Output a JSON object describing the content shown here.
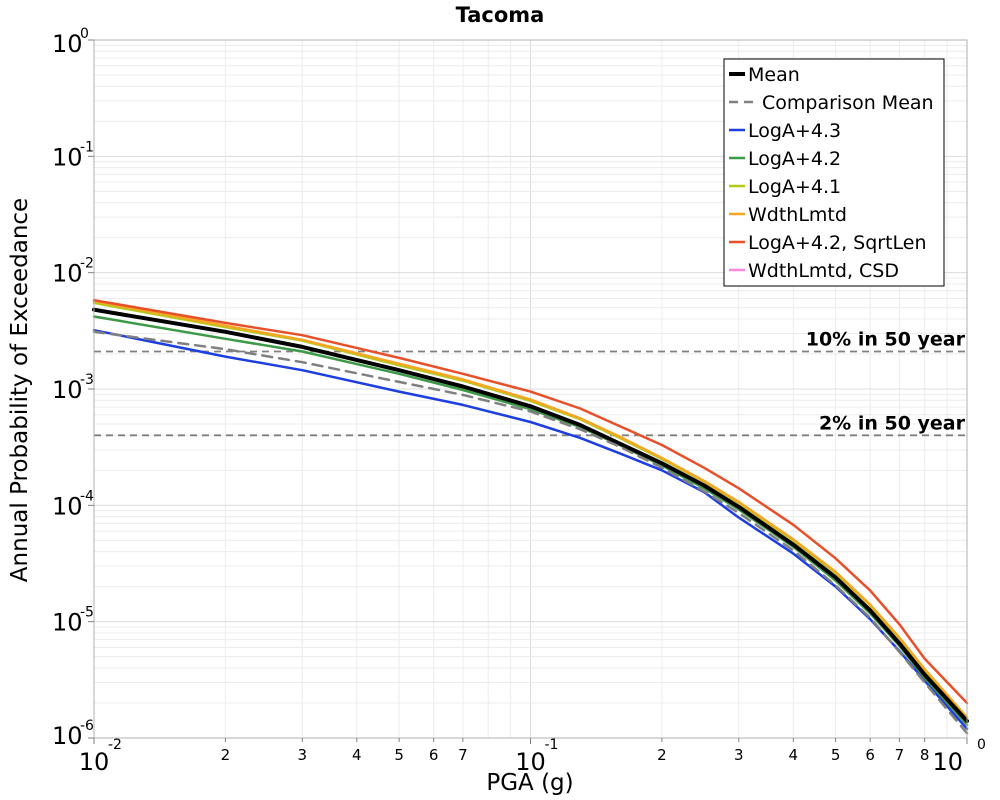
{
  "chart_data": {
    "type": "line",
    "title": "Tacoma",
    "xlabel": "PGA (g)",
    "ylabel": "Annual Probability of Exceedance",
    "xscale": "log",
    "yscale": "log",
    "xlim": [
      0.01,
      1.0
    ],
    "ylim": [
      1e-06,
      1.0
    ],
    "grid": true,
    "legend_position": "top-right",
    "x_major_ticks": [
      {
        "value": 0.01,
        "base": "10",
        "exp": "-2"
      },
      {
        "value": 0.1,
        "base": "10",
        "exp": "-1"
      },
      {
        "value": 1.0,
        "base": "10",
        "exp": "0"
      }
    ],
    "x_minor_ticks": [
      {
        "value": 0.02,
        "label": "2"
      },
      {
        "value": 0.03,
        "label": "3"
      },
      {
        "value": 0.04,
        "label": "4"
      },
      {
        "value": 0.05,
        "label": "5"
      },
      {
        "value": 0.06,
        "label": "6"
      },
      {
        "value": 0.07,
        "label": "7"
      },
      {
        "value": 0.2,
        "label": "2"
      },
      {
        "value": 0.3,
        "label": "3"
      },
      {
        "value": 0.4,
        "label": "4"
      },
      {
        "value": 0.5,
        "label": "5"
      },
      {
        "value": 0.6,
        "label": "6"
      },
      {
        "value": 0.7,
        "label": "7"
      },
      {
        "value": 0.8,
        "label": "8"
      }
    ],
    "y_major_ticks": [
      {
        "value": 1.0,
        "base": "10",
        "exp": "0"
      },
      {
        "value": 0.1,
        "base": "10",
        "exp": "-1"
      },
      {
        "value": 0.01,
        "base": "10",
        "exp": "-2"
      },
      {
        "value": 0.001,
        "base": "10",
        "exp": "-3"
      },
      {
        "value": 0.0001,
        "base": "10",
        "exp": "-4"
      },
      {
        "value": 1e-05,
        "base": "10",
        "exp": "-5"
      },
      {
        "value": 1e-06,
        "base": "10",
        "exp": "-6"
      }
    ],
    "x": [
      0.01,
      0.02,
      0.03,
      0.05,
      0.07,
      0.1,
      0.13,
      0.16,
      0.2,
      0.25,
      0.3,
      0.4,
      0.5,
      0.6,
      0.7,
      0.8,
      1.0
    ],
    "series": [
      {
        "name": "Mean",
        "color": "#000000",
        "style": "solid",
        "width": 4,
        "values": [
          0.0048,
          0.0031,
          0.0023,
          0.00145,
          0.00105,
          0.00071,
          0.00049,
          0.00034,
          0.00023,
          0.000148,
          9.7e-05,
          4.6e-05,
          2.4e-05,
          1.25e-05,
          6.5e-06,
          3.5e-06,
          1.4e-06
        ]
      },
      {
        "name": "Comparison Mean",
        "color": "#808080",
        "style": "dashed",
        "width": 2.5,
        "values": [
          0.0031,
          0.0022,
          0.0017,
          0.00115,
          0.00089,
          0.00064,
          0.00045,
          0.00032,
          0.00021,
          0.000132,
          8.6e-05,
          4.1e-05,
          2.05e-05,
          1.08e-05,
          5.5e-06,
          3e-06,
          1.1e-06
        ]
      },
      {
        "name": "LogA+4.3",
        "color": "#1e3fe0",
        "style": "solid",
        "width": 2.5,
        "values": [
          0.0032,
          0.0019,
          0.00145,
          0.00095,
          0.00073,
          0.00052,
          0.00038,
          0.00028,
          0.0002,
          0.00013,
          7.85e-05,
          3.85e-05,
          2e-05,
          1.05e-05,
          5.6e-06,
          3.1e-06,
          1.2e-06
        ]
      },
      {
        "name": "LogA+4.2",
        "color": "#3c9a46",
        "style": "solid",
        "width": 2.5,
        "values": [
          0.0042,
          0.0027,
          0.0021,
          0.00135,
          0.00098,
          0.00067,
          0.00047,
          0.00033,
          0.00022,
          0.00014,
          9.2e-05,
          4.4e-05,
          2.25e-05,
          1.18e-05,
          6.2e-06,
          3.3e-06,
          1.3e-06
        ]
      },
      {
        "name": "LogA+4.1",
        "color": "#b5c91a",
        "style": "solid",
        "width": 2.5,
        "values": [
          0.0055,
          0.0034,
          0.0026,
          0.0016,
          0.00118,
          0.00079,
          0.00055,
          0.00038,
          0.00025,
          0.00016,
          0.000105,
          5e-05,
          2.62e-05,
          1.38e-05,
          7.2e-06,
          3.8e-06,
          1.5e-06
        ]
      },
      {
        "name": "WdthLmtd",
        "color": "#f5a623",
        "style": "solid",
        "width": 2.5,
        "values": [
          0.0057,
          0.0035,
          0.00265,
          0.00165,
          0.00121,
          0.00081,
          0.00056,
          0.00039,
          0.000255,
          0.000162,
          0.000107,
          5.1e-05,
          2.68e-05,
          1.4e-05,
          7.3e-06,
          3.9e-06,
          1.5e-06
        ]
      },
      {
        "name": "LogA+4.2, SqrtLen",
        "color": "#e8502a",
        "style": "solid",
        "width": 2.5,
        "values": [
          0.0058,
          0.0037,
          0.0029,
          0.00185,
          0.00135,
          0.00095,
          0.00068,
          0.00048,
          0.00033,
          0.00021,
          0.00014,
          6.8e-05,
          3.5e-05,
          1.85e-05,
          9.5e-06,
          4.8e-06,
          2e-06
        ]
      },
      {
        "name": "WdthLmtd, CSD",
        "color": "#ff88dd",
        "style": "solid",
        "width": 2.5,
        "values": [
          0.0048,
          0.0031,
          0.0023,
          0.00145,
          0.00105,
          0.00071,
          0.00049,
          0.00034,
          0.00023,
          0.000148,
          9.7e-05,
          4.6e-05,
          2.4e-05,
          1.25e-05,
          6.5e-06,
          3.5e-06,
          1.4e-06
        ]
      }
    ],
    "legend_order": [
      0,
      1,
      2,
      3,
      4,
      5,
      6,
      7
    ],
    "draw_order": [
      7,
      2,
      3,
      4,
      5,
      6,
      0,
      1
    ],
    "reference_lines": [
      {
        "label": "10% in 50 year",
        "value": 0.0021,
        "color": "#808080"
      },
      {
        "label": "2% in 50 year",
        "value": 0.0004,
        "color": "#808080"
      }
    ]
  }
}
